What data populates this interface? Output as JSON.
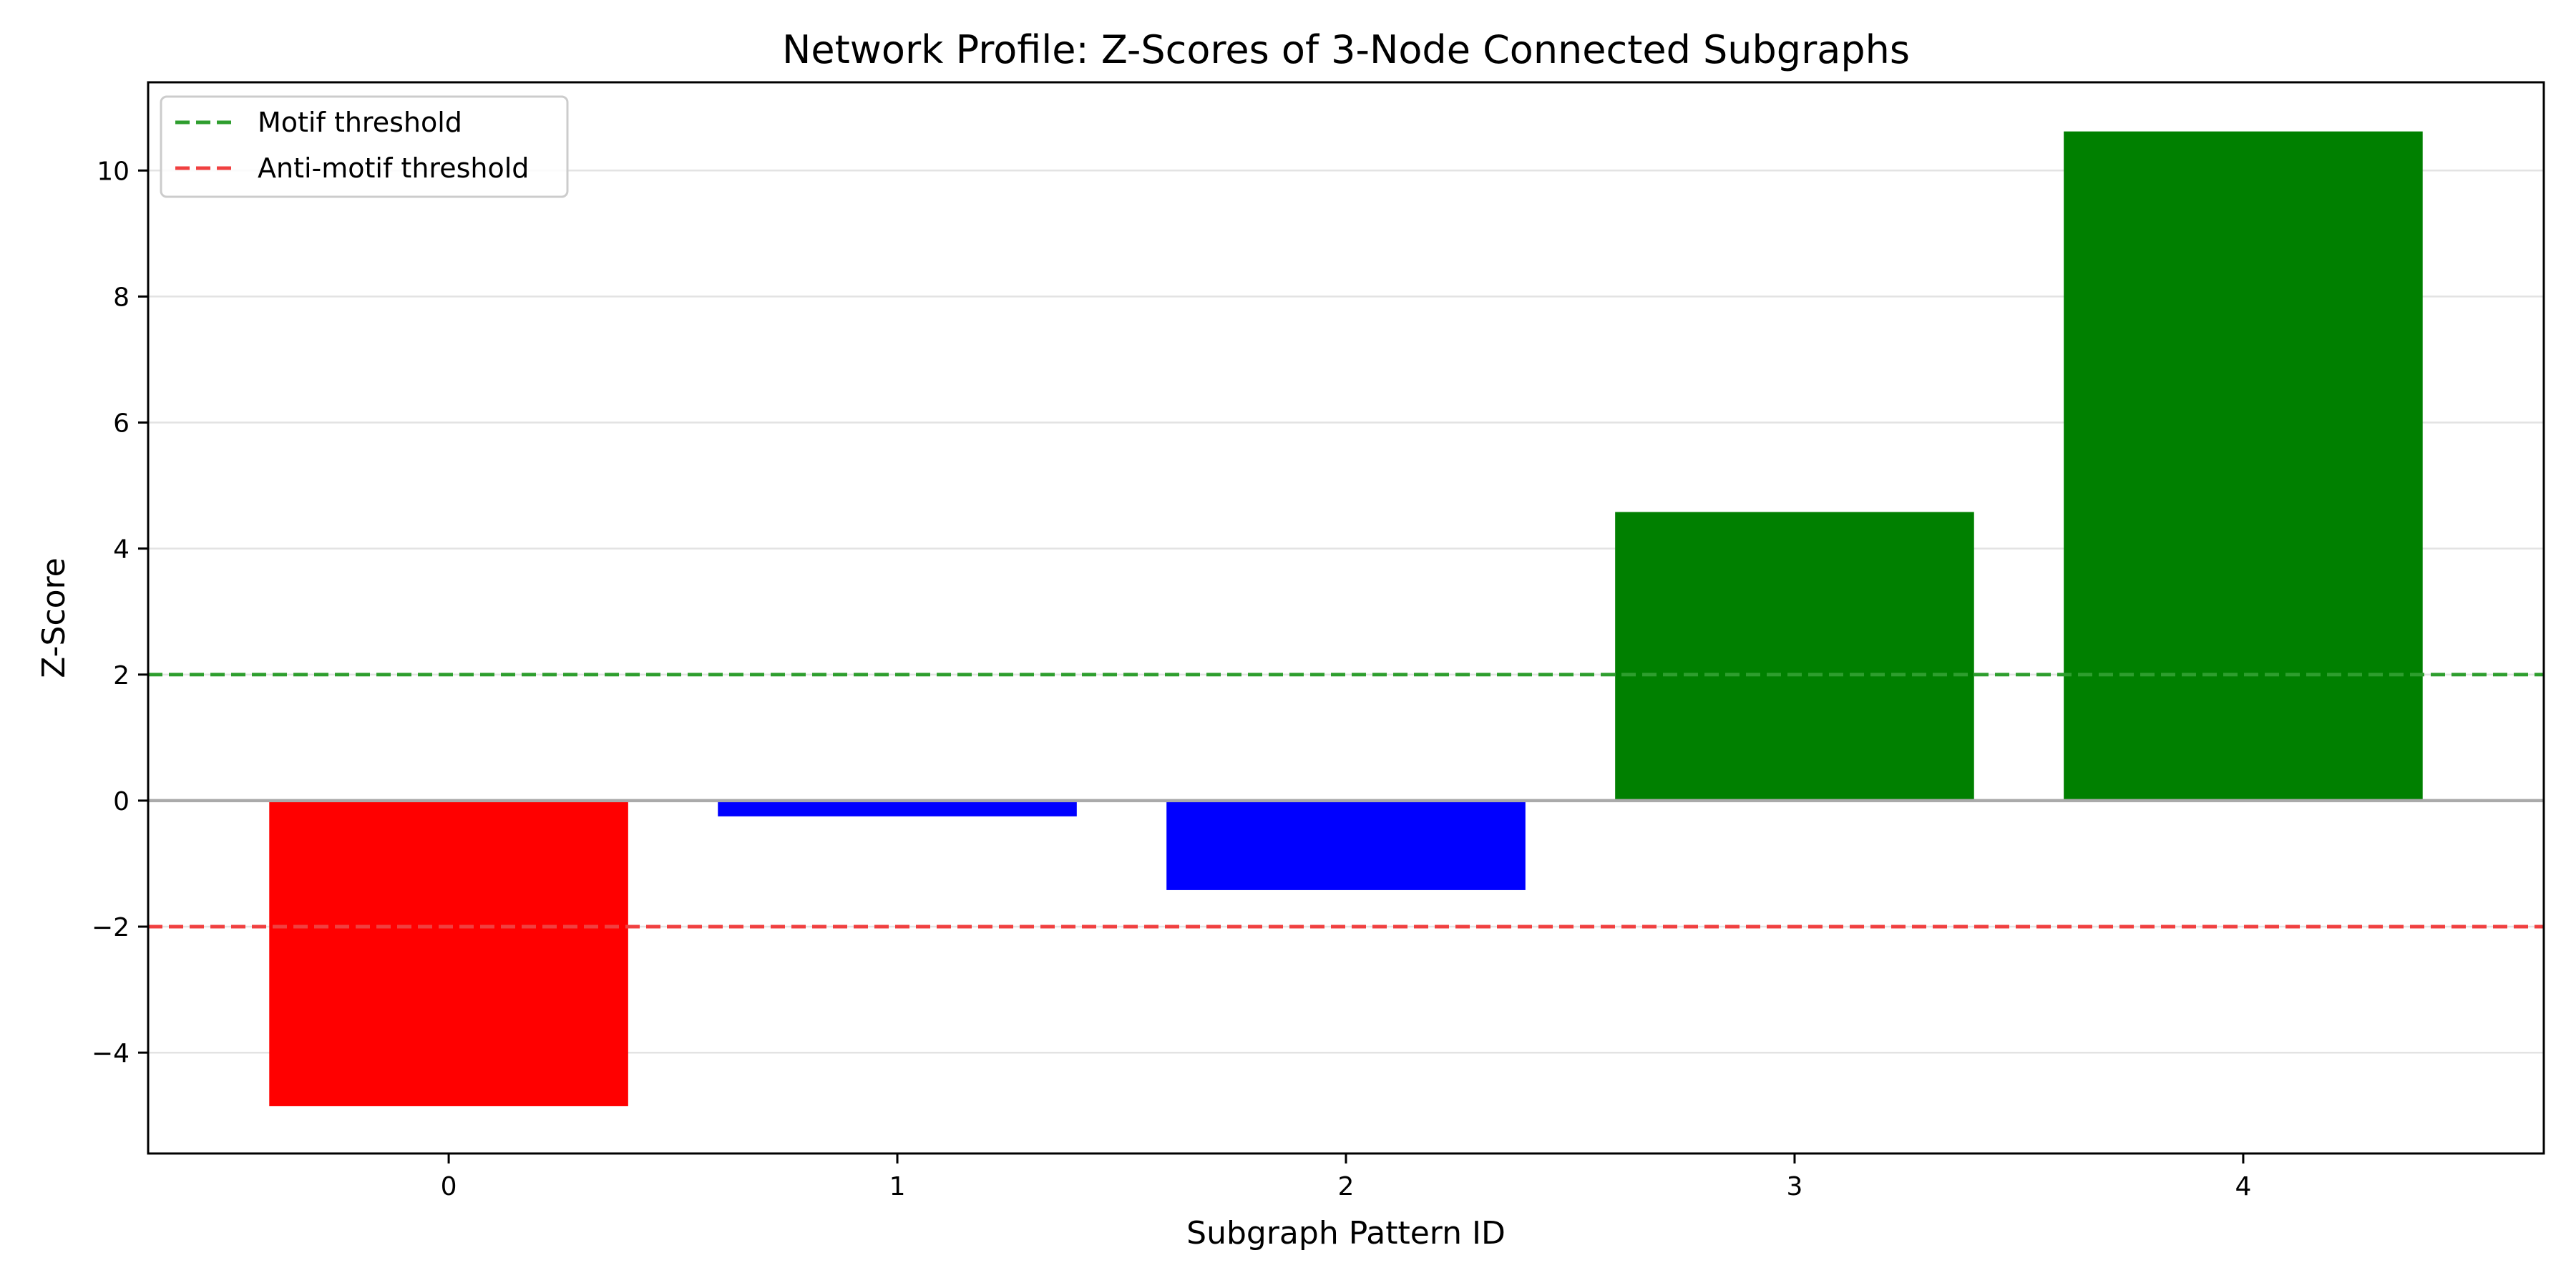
{
  "chart_data": {
    "type": "bar",
    "title": "Network Profile: Z-Scores of 3-Node Connected Subgraphs",
    "xlabel": "Subgraph Pattern ID",
    "ylabel": "Z-Score",
    "categories": [
      "0",
      "1",
      "2",
      "3",
      "4"
    ],
    "values": [
      -4.85,
      -0.25,
      -1.42,
      4.58,
      10.62
    ],
    "bar_colors": [
      "#ff0000",
      "#0000ff",
      "#0000ff",
      "#008000",
      "#008000"
    ],
    "ylim": [
      -5.6,
      11.4
    ],
    "yticks": [
      -4,
      -2,
      0,
      2,
      4,
      6,
      8,
      10
    ],
    "ytick_labels": [
      "−4",
      "−2",
      "0",
      "2",
      "4",
      "6",
      "8",
      "10"
    ],
    "grid": "horizontal",
    "zero_line_color": "#aaaaaa",
    "reference_lines": [
      {
        "name": "Motif threshold",
        "y": 2,
        "color": "#2e9e2e",
        "style": "dashed"
      },
      {
        "name": "Anti-motif threshold",
        "y": -2,
        "color": "#f04040",
        "style": "dashed"
      }
    ],
    "legend_position": "top-left"
  }
}
